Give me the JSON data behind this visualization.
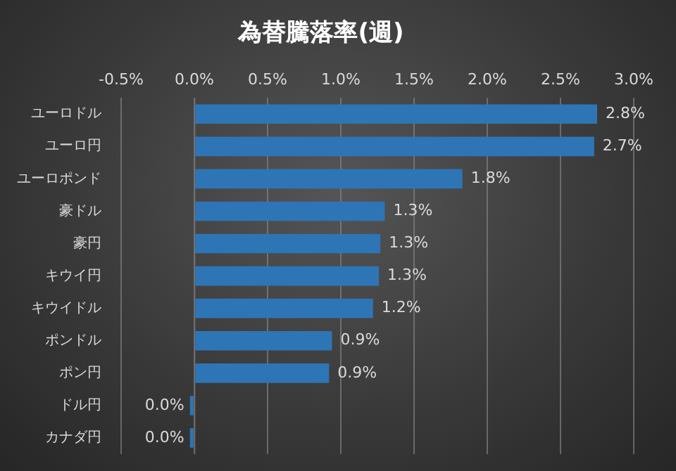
{
  "chart_data": {
    "type": "bar",
    "orientation": "horizontal",
    "title": "為替騰落率(週)",
    "categories": [
      "ユーロドル",
      "ユーロ円",
      "ユーロポンド",
      "豪ドル",
      "豪円",
      "キウイ円",
      "キウイドル",
      "ポンドル",
      "ポン円",
      "ドル円",
      "カナダ円"
    ],
    "values": [
      2.75,
      2.73,
      1.83,
      1.3,
      1.27,
      1.26,
      1.22,
      0.94,
      0.92,
      -0.03,
      -0.03
    ],
    "value_labels": [
      "2.8%",
      "2.7%",
      "1.8%",
      "1.3%",
      "1.3%",
      "1.3%",
      "1.2%",
      "0.9%",
      "0.9%",
      "0.0%",
      "0.0%"
    ],
    "color": "#2e75b6",
    "xlim": [
      -0.5,
      3.0
    ],
    "xticks": [
      {
        "value": -0.5,
        "label": "-0.5%"
      },
      {
        "value": 0,
        "label": "0.0%"
      },
      {
        "value": 0.5,
        "label": "0.5%"
      },
      {
        "value": 1,
        "label": "1.0%"
      },
      {
        "value": 1.5,
        "label": "1.5%"
      },
      {
        "value": 2,
        "label": "2.0%"
      },
      {
        "value": 2.5,
        "label": "2.5%"
      },
      {
        "value": 3,
        "label": "3.0%"
      }
    ],
    "grid": "x",
    "legend": false
  }
}
